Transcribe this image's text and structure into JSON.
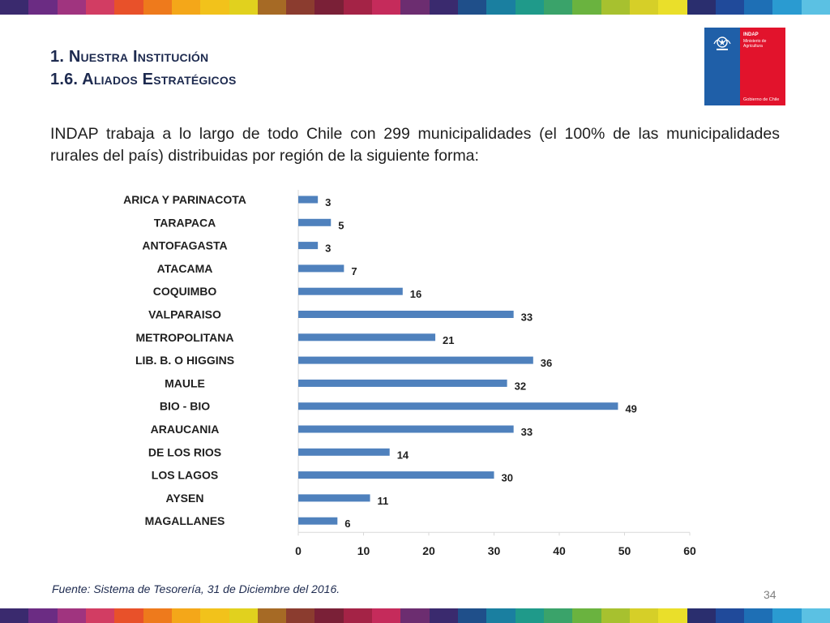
{
  "header": {
    "title_line1": "1. Nuestra Institución",
    "title_line2": "1.6. Aliados Estratégicos"
  },
  "logo": {
    "name": "INDAP",
    "ministry": "Ministerio de Agricultura",
    "government": "Gobierno de Chile",
    "colors": {
      "blue": "#1f5fa8",
      "red": "#e2132c"
    }
  },
  "intro_text": "INDAP trabaja a lo largo de todo Chile con 299 municipalidades (el 100% de las municipalidades rurales del país) distribuidas por región de la siguiente forma:",
  "stripe_colors": [
    "#3a2a6e",
    "#6b2c83",
    "#a0347f",
    "#d23d63",
    "#e8512a",
    "#ee7a1c",
    "#f4a719",
    "#f2c21b",
    "#e1d11e",
    "#a66a25",
    "#8b3c2f",
    "#7a2037",
    "#a42346",
    "#c52b5b",
    "#6c2d70",
    "#3a2a6e",
    "#1f4f8a",
    "#1a7fa0",
    "#1f9a8a",
    "#3aa36a",
    "#6ab33f",
    "#a7c12f",
    "#d6cf28",
    "#eadf2a",
    "#2a2e6e",
    "#204a9a",
    "#1e6fb5",
    "#2a9bd1",
    "#5bc1e3"
  ],
  "chart_data": {
    "type": "bar",
    "orientation": "horizontal",
    "categories": [
      "ARICA Y PARINACOTA",
      "TARAPACA",
      "ANTOFAGASTA",
      "ATACAMA",
      "COQUIMBO",
      "VALPARAISO",
      "METROPOLITANA",
      "LIB. B. O HIGGINS",
      "MAULE",
      "BIO - BIO",
      "ARAUCANIA",
      "DE LOS RIOS",
      "LOS LAGOS",
      "AYSEN",
      "MAGALLANES"
    ],
    "values": [
      3,
      5,
      3,
      7,
      16,
      33,
      21,
      36,
      32,
      49,
      33,
      14,
      30,
      11,
      6
    ],
    "xlim": [
      0,
      60
    ],
    "xticks": [
      0,
      10,
      20,
      30,
      40,
      50,
      60
    ],
    "bar_color": "#4f81bd",
    "grid": false,
    "data_labels": true
  },
  "footer": {
    "source": "Fuente: Sistema de Tesorería, 31 de Diciembre del 2016.",
    "page_number": "34"
  }
}
